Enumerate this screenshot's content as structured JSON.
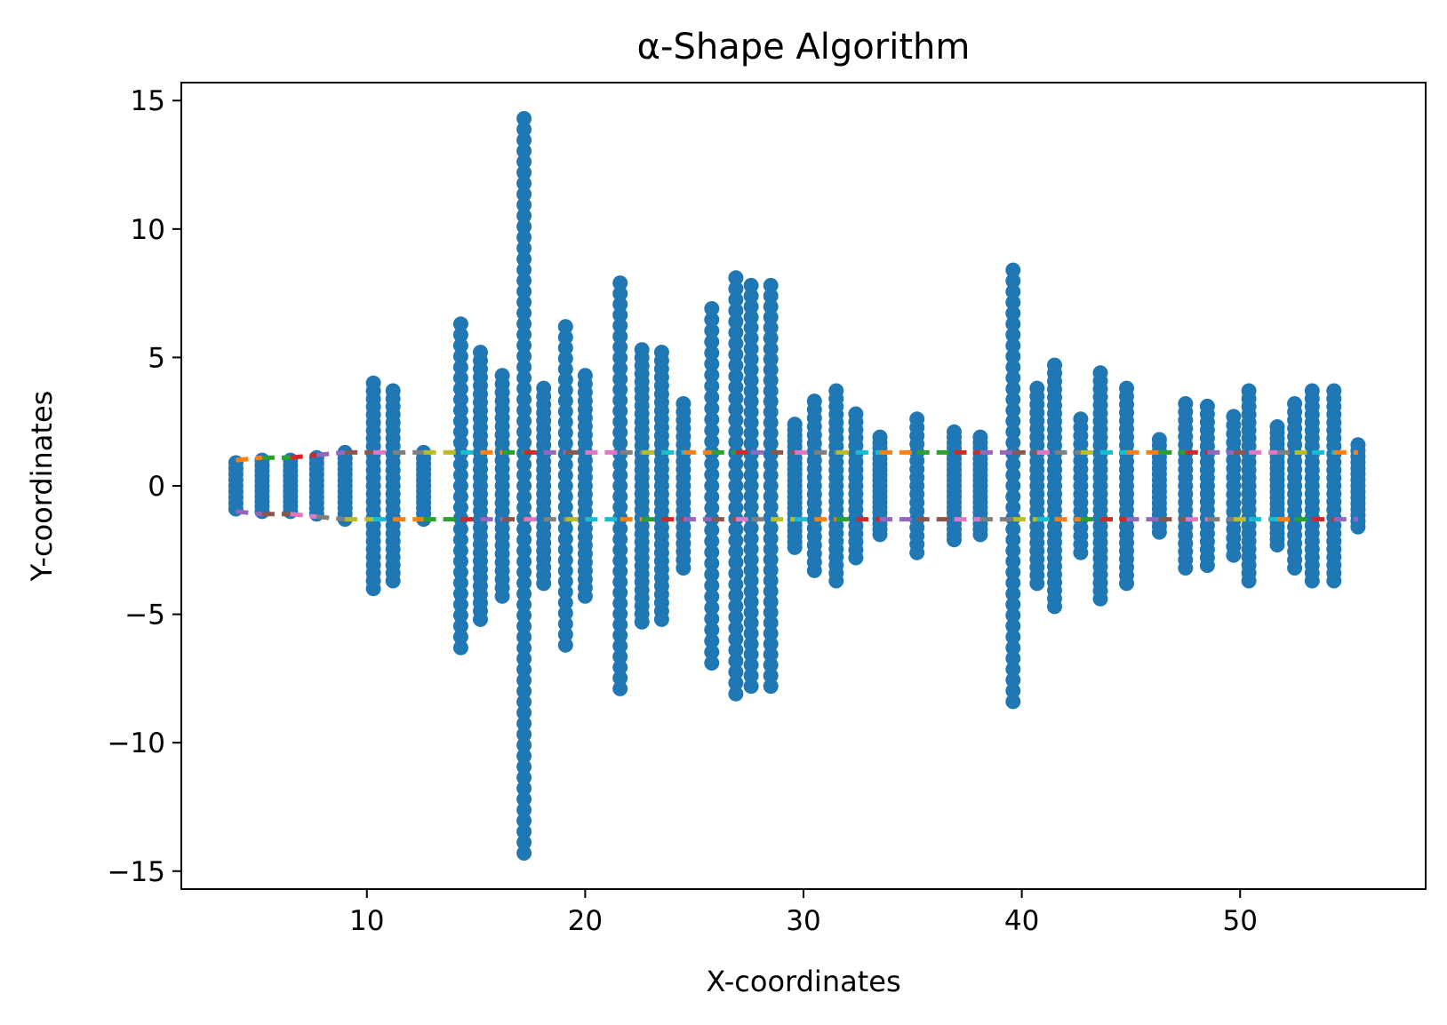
{
  "chart_data": {
    "type": "scatter",
    "title": "α-Shape Algorithm",
    "xlabel": "X-coordinates",
    "ylabel": "Y-coordinates",
    "xlim": [
      1.5,
      58.5
    ],
    "ylim": [
      -15.7,
      15.7
    ],
    "x_ticks": [
      10,
      20,
      30,
      40,
      50
    ],
    "x_tick_labels": [
      "10",
      "20",
      "30",
      "40",
      "50"
    ],
    "y_ticks": [
      15,
      10,
      5,
      0,
      -5,
      -10,
      -15
    ],
    "y_tick_labels": [
      "15",
      "10",
      "5",
      "0",
      "−5",
      "−10",
      "−15"
    ],
    "grid": false,
    "legend": false,
    "point_color": "#1f77b4",
    "boundary_colors": [
      "#ff7f0e",
      "#2ca02c",
      "#d62728",
      "#9467bd",
      "#8c564b",
      "#e377c2",
      "#7f7f7f",
      "#bcbd22",
      "#17becf"
    ],
    "columns": [
      {
        "x": 4.0,
        "ymax": 0.9
      },
      {
        "x": 5.2,
        "ymax": 1.0
      },
      {
        "x": 6.5,
        "ymax": 1.0
      },
      {
        "x": 7.7,
        "ymax": 1.1
      },
      {
        "x": 9.0,
        "ymax": 1.3
      },
      {
        "x": 10.3,
        "ymax": 4.0
      },
      {
        "x": 11.2,
        "ymax": 3.7
      },
      {
        "x": 12.6,
        "ymax": 1.3
      },
      {
        "x": 14.3,
        "ymax": 6.3
      },
      {
        "x": 15.2,
        "ymax": 5.2
      },
      {
        "x": 16.2,
        "ymax": 4.3
      },
      {
        "x": 17.2,
        "ymax": 14.3
      },
      {
        "x": 18.1,
        "ymax": 3.8
      },
      {
        "x": 19.1,
        "ymax": 6.2
      },
      {
        "x": 20.0,
        "ymax": 4.3
      },
      {
        "x": 21.6,
        "ymax": 7.9
      },
      {
        "x": 22.6,
        "ymax": 5.3
      },
      {
        "x": 23.5,
        "ymax": 5.2
      },
      {
        "x": 24.5,
        "ymax": 3.2
      },
      {
        "x": 25.8,
        "ymax": 6.9
      },
      {
        "x": 26.9,
        "ymax": 8.1
      },
      {
        "x": 27.6,
        "ymax": 7.8
      },
      {
        "x": 28.5,
        "ymax": 7.8
      },
      {
        "x": 29.6,
        "ymax": 2.4
      },
      {
        "x": 30.5,
        "ymax": 3.3
      },
      {
        "x": 31.5,
        "ymax": 3.7
      },
      {
        "x": 32.4,
        "ymax": 2.8
      },
      {
        "x": 33.5,
        "ymax": 1.9
      },
      {
        "x": 35.2,
        "ymax": 2.6
      },
      {
        "x": 36.9,
        "ymax": 2.1
      },
      {
        "x": 38.1,
        "ymax": 1.9
      },
      {
        "x": 39.6,
        "ymax": 8.4
      },
      {
        "x": 40.7,
        "ymax": 3.8
      },
      {
        "x": 41.5,
        "ymax": 4.7
      },
      {
        "x": 42.7,
        "ymax": 2.6
      },
      {
        "x": 43.6,
        "ymax": 4.4
      },
      {
        "x": 44.8,
        "ymax": 3.8
      },
      {
        "x": 46.3,
        "ymax": 1.8
      },
      {
        "x": 47.5,
        "ymax": 3.2
      },
      {
        "x": 48.5,
        "ymax": 3.1
      },
      {
        "x": 49.7,
        "ymax": 2.7
      },
      {
        "x": 50.4,
        "ymax": 3.7
      },
      {
        "x": 51.7,
        "ymax": 2.3
      },
      {
        "x": 52.5,
        "ymax": 3.2
      },
      {
        "x": 53.3,
        "ymax": 3.7
      },
      {
        "x": 54.3,
        "ymax": 3.7
      },
      {
        "x": 55.4,
        "ymax": 1.6
      }
    ]
  }
}
